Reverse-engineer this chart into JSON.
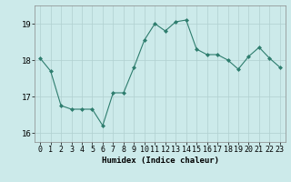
{
  "x": [
    0,
    1,
    2,
    3,
    4,
    5,
    6,
    7,
    8,
    9,
    10,
    11,
    12,
    13,
    14,
    15,
    16,
    17,
    18,
    19,
    20,
    21,
    22,
    23
  ],
  "y": [
    18.05,
    17.7,
    16.75,
    16.65,
    16.65,
    16.65,
    16.2,
    17.1,
    17.1,
    17.8,
    18.55,
    19.0,
    18.8,
    19.05,
    19.1,
    18.3,
    18.15,
    18.15,
    18.0,
    17.75,
    18.1,
    18.35,
    18.05,
    17.8
  ],
  "xlabel": "Humidex (Indice chaleur)",
  "ylim": [
    15.75,
    19.5
  ],
  "xlim": [
    -0.5,
    23.5
  ],
  "yticks": [
    16,
    17,
    18,
    19
  ],
  "xticks": [
    0,
    1,
    2,
    3,
    4,
    5,
    6,
    7,
    8,
    9,
    10,
    11,
    12,
    13,
    14,
    15,
    16,
    17,
    18,
    19,
    20,
    21,
    22,
    23
  ],
  "line_color": "#2e7d6e",
  "marker": "D",
  "marker_size": 2.0,
  "bg_color": "#cceaea",
  "grid_color": "#b0d0d0",
  "fig_bg": "#cceaea",
  "tick_fontsize": 6.0,
  "xlabel_fontsize": 6.5,
  "linewidth": 0.8
}
